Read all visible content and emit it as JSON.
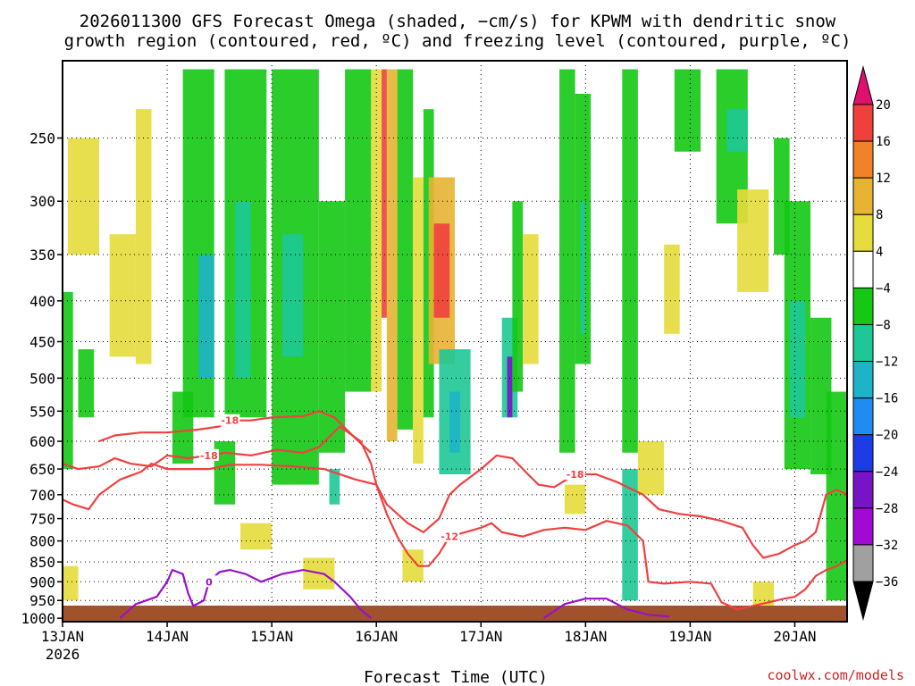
{
  "chart_data": {
    "type": "heatmap",
    "title_line1": "2026011300 GFS Forecast Omega (shaded, −cm/s) for KPWM with dendritic snow",
    "title_line2": "growth region (contoured, red, ºC) and freezing level (contoured, purple, ºC)",
    "xlabel": "Forecast Time (UTC)",
    "credit": "coolwx.com/models",
    "x_ticks": [
      {
        "value": 0,
        "label": "13JAN"
      },
      {
        "value": 1,
        "label": "14JAN"
      },
      {
        "value": 2,
        "label": "15JAN"
      },
      {
        "value": 3,
        "label": "16JAN"
      },
      {
        "value": 4,
        "label": "17JAN"
      },
      {
        "value": 5,
        "label": "18JAN"
      },
      {
        "value": 6,
        "label": "19JAN"
      },
      {
        "value": 7,
        "label": "20JAN"
      }
    ],
    "x_year_label": "2026",
    "xlim": [
      0,
      7.5
    ],
    "y_ticks": [
      250,
      300,
      350,
      400,
      450,
      500,
      550,
      600,
      650,
      700,
      750,
      800,
      850,
      900,
      950,
      1000
    ],
    "ylim": [
      1010,
      200
    ],
    "y_scale": "log-pressure",
    "grid": true,
    "colorbar_labels": [
      {
        "value": 20,
        "text": "20"
      },
      {
        "value": 16,
        "text": "16"
      },
      {
        "value": 12,
        "text": "12"
      },
      {
        "value": 8,
        "text": "8"
      },
      {
        "value": 4,
        "text": "4"
      },
      {
        "value": -4,
        "text": "−4"
      },
      {
        "value": -8,
        "text": "−8"
      },
      {
        "value": -12,
        "text": "−12"
      },
      {
        "value": -16,
        "text": "−16"
      },
      {
        "value": -20,
        "text": "−20"
      },
      {
        "value": -24,
        "text": "−24"
      },
      {
        "value": -28,
        "text": "−28"
      },
      {
        "value": -32,
        "text": "−32"
      },
      {
        "value": -36,
        "text": "−36"
      }
    ],
    "colorbar_bins": [
      {
        "min": 20,
        "color": "#e0106e"
      },
      {
        "min": 16,
        "max": 20,
        "color": "#f0403c"
      },
      {
        "min": 12,
        "max": 16,
        "color": "#f08228"
      },
      {
        "min": 8,
        "max": 12,
        "color": "#e6b432"
      },
      {
        "min": 4,
        "max": 8,
        "color": "#e6dc3c"
      },
      {
        "min": -4,
        "max": 4,
        "color": "#ffffff"
      },
      {
        "min": -8,
        "max": -4,
        "color": "#14c814"
      },
      {
        "min": -12,
        "max": -8,
        "color": "#1ec896"
      },
      {
        "min": -16,
        "max": -12,
        "color": "#1eb4c8"
      },
      {
        "min": -20,
        "max": -16,
        "color": "#1e8cf0"
      },
      {
        "min": -24,
        "max": -20,
        "color": "#1e3ce6"
      },
      {
        "min": -28,
        "max": -24,
        "color": "#7814c8"
      },
      {
        "min": -32,
        "max": -28,
        "color": "#a00ad2"
      },
      {
        "min": -36,
        "max": -32,
        "color": "#a0a0a0"
      },
      {
        "max": -36,
        "color": "#000000"
      }
    ],
    "omega_cells": [
      {
        "t0": 0.05,
        "t1": 0.35,
        "p0": 250,
        "p1": 350,
        "value": 6
      },
      {
        "t0": 0.45,
        "t1": 0.7,
        "p0": 330,
        "p1": 470,
        "value": 6
      },
      {
        "t0": 0.7,
        "t1": 0.85,
        "p0": 230,
        "p1": 480,
        "value": 5
      },
      {
        "t0": 0.0,
        "t1": 0.1,
        "p0": 390,
        "p1": 650,
        "value": -8
      },
      {
        "t0": 0.15,
        "t1": 0.3,
        "p0": 460,
        "p1": 560,
        "value": -6
      },
      {
        "t0": 1.15,
        "t1": 1.45,
        "p0": 205,
        "p1": 560,
        "value": -7
      },
      {
        "t0": 1.3,
        "t1": 1.45,
        "p0": 350,
        "p1": 500,
        "value": -13
      },
      {
        "t0": 1.55,
        "t1": 1.95,
        "p0": 205,
        "p1": 560,
        "value": -7
      },
      {
        "t0": 1.65,
        "t1": 1.8,
        "p0": 300,
        "p1": 500,
        "value": -10
      },
      {
        "t0": 1.05,
        "t1": 1.25,
        "p0": 520,
        "p1": 640,
        "value": -7
      },
      {
        "t0": 1.45,
        "t1": 1.65,
        "p0": 600,
        "p1": 720,
        "value": -6
      },
      {
        "t0": 2.0,
        "t1": 2.45,
        "p0": 205,
        "p1": 680,
        "value": -6
      },
      {
        "t0": 2.1,
        "t1": 2.3,
        "p0": 330,
        "p1": 470,
        "value": -10
      },
      {
        "t0": 2.45,
        "t1": 2.7,
        "p0": 300,
        "p1": 620,
        "value": -7
      },
      {
        "t0": 2.7,
        "t1": 2.95,
        "p0": 205,
        "p1": 520,
        "value": -6
      },
      {
        "t0": 2.55,
        "t1": 2.65,
        "p0": 650,
        "p1": 720,
        "value": -10
      },
      {
        "t0": 2.95,
        "t1": 3.05,
        "p0": 205,
        "p1": 520,
        "value": 5
      },
      {
        "t0": 3.05,
        "t1": 3.1,
        "p0": 205,
        "p1": 420,
        "value": 18
      },
      {
        "t0": 3.1,
        "t1": 3.2,
        "p0": 205,
        "p1": 600,
        "value": 10
      },
      {
        "t0": 3.2,
        "t1": 3.35,
        "p0": 205,
        "p1": 580,
        "value": -8
      },
      {
        "t0": 3.35,
        "t1": 3.45,
        "p0": 280,
        "p1": 640,
        "value": 7
      },
      {
        "t0": 3.45,
        "t1": 3.55,
        "p0": 230,
        "p1": 560,
        "value": -8
      },
      {
        "t0": 3.5,
        "t1": 3.75,
        "p0": 280,
        "p1": 480,
        "value": 10
      },
      {
        "t0": 3.55,
        "t1": 3.7,
        "p0": 320,
        "p1": 420,
        "value": 17
      },
      {
        "t0": 3.6,
        "t1": 3.9,
        "p0": 460,
        "p1": 660,
        "value": -9
      },
      {
        "t0": 3.7,
        "t1": 3.8,
        "p0": 520,
        "p1": 620,
        "value": -13
      },
      {
        "t0": 4.2,
        "t1": 4.35,
        "p0": 420,
        "p1": 560,
        "value": -10
      },
      {
        "t0": 4.25,
        "t1": 4.3,
        "p0": 470,
        "p1": 560,
        "value": -26
      },
      {
        "t0": 4.3,
        "t1": 4.4,
        "p0": 300,
        "p1": 520,
        "value": -7
      },
      {
        "t0": 4.4,
        "t1": 4.55,
        "p0": 330,
        "p1": 480,
        "value": 5
      },
      {
        "t0": 4.75,
        "t1": 4.9,
        "p0": 205,
        "p1": 620,
        "value": -6
      },
      {
        "t0": 4.9,
        "t1": 5.05,
        "p0": 220,
        "p1": 480,
        "value": -8
      },
      {
        "t0": 4.95,
        "t1": 5.0,
        "p0": 300,
        "p1": 440,
        "value": -12
      },
      {
        "t0": 5.35,
        "t1": 5.5,
        "p0": 205,
        "p1": 620,
        "value": -7
      },
      {
        "t0": 5.35,
        "t1": 5.5,
        "p0": 650,
        "p1": 950,
        "value": -9
      },
      {
        "t0": 5.75,
        "t1": 5.9,
        "p0": 340,
        "p1": 440,
        "value": 5
      },
      {
        "t0": 5.5,
        "t1": 5.75,
        "p0": 600,
        "p1": 700,
        "value": 5
      },
      {
        "t0": 5.85,
        "t1": 6.1,
        "p0": 205,
        "p1": 260,
        "value": -6
      },
      {
        "t0": 6.25,
        "t1": 6.55,
        "p0": 205,
        "p1": 320,
        "value": -7
      },
      {
        "t0": 6.35,
        "t1": 6.55,
        "p0": 230,
        "p1": 260,
        "value": -10
      },
      {
        "t0": 6.45,
        "t1": 6.75,
        "p0": 290,
        "p1": 390,
        "value": 6
      },
      {
        "t0": 6.8,
        "t1": 6.95,
        "p0": 250,
        "p1": 350,
        "value": -6
      },
      {
        "t0": 6.9,
        "t1": 7.15,
        "p0": 300,
        "p1": 650,
        "value": -7
      },
      {
        "t0": 6.95,
        "t1": 7.1,
        "p0": 400,
        "p1": 560,
        "value": -12
      },
      {
        "t0": 7.15,
        "t1": 7.35,
        "p0": 420,
        "p1": 660,
        "value": -8
      },
      {
        "t0": 7.3,
        "t1": 7.5,
        "p0": 520,
        "p1": 950,
        "value": -8
      },
      {
        "t0": 6.6,
        "t1": 6.8,
        "p0": 900,
        "p1": 980,
        "value": 5
      },
      {
        "t0": 3.25,
        "t1": 3.45,
        "p0": 820,
        "p1": 900,
        "value": 6
      },
      {
        "t0": 2.3,
        "t1": 2.6,
        "p0": 840,
        "p1": 920,
        "value": 5
      },
      {
        "t0": 0.0,
        "t1": 0.15,
        "p0": 860,
        "p1": 950,
        "value": 5
      },
      {
        "t0": 1.7,
        "t1": 2.0,
        "p0": 760,
        "p1": 820,
        "value": 5
      },
      {
        "t0": 4.8,
        "t1": 5.0,
        "p0": 680,
        "p1": 740,
        "value": 5
      }
    ],
    "dgz_contours": [
      {
        "label": "-12",
        "points": [
          [
            0,
            710
          ],
          [
            0.1,
            720
          ],
          [
            0.25,
            730
          ],
          [
            0.35,
            700
          ],
          [
            0.55,
            670
          ],
          [
            0.75,
            655
          ],
          [
            0.85,
            640
          ],
          [
            1,
            650
          ],
          [
            1.4,
            650
          ],
          [
            1.6,
            642
          ],
          [
            1.9,
            642
          ],
          [
            2.2,
            645
          ],
          [
            2.5,
            650
          ],
          [
            2.8,
            670
          ],
          [
            3.0,
            680
          ],
          [
            3.1,
            740
          ],
          [
            3.2,
            790
          ],
          [
            3.3,
            830
          ],
          [
            3.4,
            860
          ],
          [
            3.5,
            860
          ],
          [
            3.6,
            830
          ],
          [
            3.7,
            790
          ],
          [
            3.85,
            780
          ],
          [
            4.0,
            770
          ],
          [
            4.1,
            760
          ],
          [
            4.2,
            780
          ],
          [
            4.4,
            790
          ],
          [
            4.6,
            775
          ],
          [
            4.8,
            770
          ],
          [
            5.0,
            775
          ],
          [
            5.2,
            755
          ],
          [
            5.4,
            765
          ],
          [
            5.55,
            800
          ],
          [
            5.6,
            900
          ],
          [
            5.75,
            905
          ],
          [
            6.0,
            900
          ],
          [
            6.2,
            905
          ],
          [
            6.3,
            955
          ],
          [
            6.45,
            975
          ],
          [
            6.6,
            965
          ],
          [
            6.75,
            955
          ],
          [
            6.9,
            945
          ],
          [
            7.0,
            940
          ],
          [
            7.1,
            920
          ],
          [
            7.2,
            885
          ],
          [
            7.3,
            870
          ],
          [
            7.4,
            860
          ],
          [
            7.5,
            845
          ]
        ]
      },
      {
        "label": "-18",
        "points": [
          [
            0,
            640
          ],
          [
            0.15,
            650
          ],
          [
            0.35,
            645
          ],
          [
            0.5,
            630
          ],
          [
            0.65,
            640
          ],
          [
            0.85,
            645
          ],
          [
            1.0,
            625
          ],
          [
            1.2,
            630
          ],
          [
            1.4,
            625
          ],
          [
            1.55,
            620
          ],
          [
            1.8,
            625
          ],
          [
            2.05,
            615
          ],
          [
            2.3,
            620
          ],
          [
            2.45,
            610
          ],
          [
            2.65,
            575
          ],
          [
            2.85,
            600
          ],
          [
            2.95,
            640
          ],
          [
            3.0,
            680
          ]
        ]
      },
      {
        "label": "-18",
        "points": [
          [
            0.35,
            600
          ],
          [
            0.5,
            590
          ],
          [
            0.75,
            585
          ],
          [
            1.0,
            585
          ],
          [
            1.3,
            580
          ],
          [
            1.5,
            575
          ],
          [
            1.6,
            565
          ],
          [
            1.8,
            565
          ],
          [
            2.0,
            560
          ],
          [
            2.3,
            558
          ],
          [
            2.45,
            550
          ],
          [
            2.6,
            560
          ],
          [
            2.8,
            595
          ],
          [
            2.95,
            620
          ]
        ]
      },
      {
        "label": "-18",
        "points": [
          [
            3.0,
            680
          ],
          [
            3.1,
            720
          ],
          [
            3.3,
            760
          ],
          [
            3.45,
            780
          ],
          [
            3.6,
            750
          ],
          [
            3.7,
            700
          ],
          [
            3.8,
            680
          ],
          [
            4.0,
            650
          ],
          [
            4.15,
            625
          ],
          [
            4.3,
            630
          ],
          [
            4.45,
            660
          ],
          [
            4.55,
            680
          ],
          [
            4.7,
            685
          ],
          [
            4.9,
            660
          ],
          [
            5.1,
            660
          ],
          [
            5.3,
            675
          ],
          [
            5.55,
            700
          ],
          [
            5.7,
            730
          ],
          [
            5.9,
            740
          ],
          [
            6.1,
            745
          ],
          [
            6.3,
            755
          ],
          [
            6.5,
            770
          ],
          [
            6.6,
            810
          ],
          [
            6.7,
            840
          ],
          [
            6.85,
            830
          ],
          [
            7.0,
            810
          ],
          [
            7.1,
            800
          ],
          [
            7.2,
            780
          ],
          [
            7.3,
            700
          ],
          [
            7.4,
            690
          ],
          [
            7.5,
            700
          ]
        ]
      }
    ],
    "freezing_contours": [
      {
        "label": "0",
        "points": [
          [
            0.55,
            1000
          ],
          [
            0.7,
            960
          ],
          [
            0.9,
            940
          ],
          [
            1.0,
            900
          ],
          [
            1.05,
            870
          ],
          [
            1.15,
            880
          ],
          [
            1.2,
            930
          ],
          [
            1.25,
            965
          ],
          [
            1.35,
            950
          ],
          [
            1.4,
            900
          ],
          [
            1.5,
            875
          ],
          [
            1.6,
            870
          ],
          [
            1.75,
            880
          ],
          [
            1.9,
            900
          ],
          [
            2.1,
            880
          ],
          [
            2.3,
            870
          ],
          [
            2.5,
            880
          ],
          [
            2.6,
            900
          ],
          [
            2.75,
            940
          ],
          [
            2.85,
            975
          ],
          [
            2.95,
            1000
          ]
        ]
      },
      {
        "label": "",
        "points": [
          [
            4.6,
            1000
          ],
          [
            4.8,
            960
          ],
          [
            5.0,
            945
          ],
          [
            5.2,
            945
          ],
          [
            5.4,
            975
          ],
          [
            5.6,
            990
          ],
          [
            5.8,
            995
          ]
        ]
      }
    ]
  }
}
